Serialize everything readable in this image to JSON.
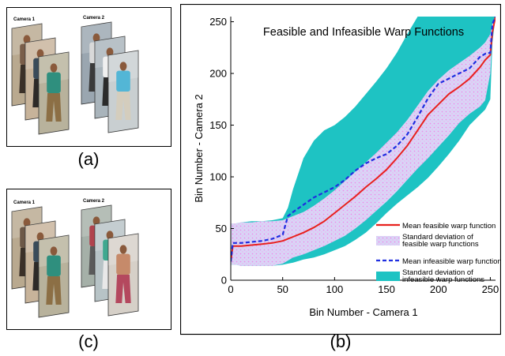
{
  "panels": {
    "a": {
      "caption": "(a)",
      "camera1_label": "Camera 1",
      "camera2_label": "Camera 2",
      "camera1_frames": [
        {
          "tone": "#b9a98f",
          "shirt": "#7a5e4a",
          "pants": "#3b3028"
        },
        {
          "tone": "#c7b39a",
          "shirt": "#3a4b5a",
          "pants": "#2d2a28"
        },
        {
          "tone": "#b8b29c",
          "shirt": "#2f8f7e",
          "pants": "#8c6f45"
        }
      ],
      "camera2_frames": [
        {
          "tone": "#9aa6b0",
          "shirt": "#d9d9d9",
          "pants": "#3a3a3a"
        },
        {
          "tone": "#a9b4bb",
          "shirt": "#f0f0f0",
          "pants": "#2b2b2b"
        },
        {
          "tone": "#c9cfd1",
          "shirt": "#53b6d6",
          "pants": "#d4cdbd"
        }
      ]
    },
    "c": {
      "caption": "(c)",
      "camera1_label": "Camera 1",
      "camera2_label": "Camera 2",
      "camera1_frames": [
        {
          "tone": "#b9a98f",
          "shirt": "#6d5848",
          "pants": "#3b3028"
        },
        {
          "tone": "#c7b39a",
          "shirt": "#3a4b5a",
          "pants": "#2d2a28"
        },
        {
          "tone": "#b8b29c",
          "shirt": "#2f8f7e",
          "pants": "#8c6f45"
        }
      ],
      "camera2_frames": [
        {
          "tone": "#a5b0a8",
          "shirt": "#b0434e",
          "pants": "#5a5a5a"
        },
        {
          "tone": "#b7c3c6",
          "shirt": "#3fa88f",
          "pants": "#e8e8e8"
        },
        {
          "tone": "#d6d0c8",
          "shirt": "#c68a6a",
          "pants": "#b4485e"
        }
      ]
    }
  },
  "chart_data": {
    "type": "line",
    "panel_caption": "(b)",
    "title": "Feasible and Infeasible Warp Functions",
    "xlabel": "Bin Number - Camera 1",
    "ylabel": "Bin Number - Camera 2",
    "xlim": [
      0,
      255
    ],
    "ylim": [
      0,
      255
    ],
    "xticks": [
      0,
      50,
      100,
      150,
      200,
      250
    ],
    "yticks": [
      0,
      50,
      100,
      150,
      200,
      250
    ],
    "grid": false,
    "legend_position": "bottom-right",
    "x": [
      0,
      2,
      5,
      10,
      20,
      30,
      40,
      50,
      55,
      60,
      70,
      80,
      90,
      100,
      110,
      120,
      130,
      140,
      150,
      160,
      170,
      180,
      190,
      200,
      210,
      220,
      230,
      240,
      245,
      250,
      252,
      255
    ],
    "series": [
      {
        "name": "Mean feasible warp function",
        "kind": "line",
        "color": "#e8211e",
        "dash": "solid",
        "values": [
          18,
          33,
          33,
          33,
          34,
          35,
          36,
          38,
          40,
          42,
          46,
          51,
          57,
          65,
          73,
          81,
          90,
          98,
          107,
          118,
          130,
          145,
          160,
          170,
          180,
          187,
          195,
          206,
          213,
          218,
          240,
          255
        ]
      },
      {
        "name": "Standard deviation of feasible warp functions",
        "kind": "band",
        "color": "#d8d0f4",
        "hatch": "#f07ee8",
        "upper": [
          55,
          55,
          55,
          56,
          56,
          57,
          57,
          58,
          60,
          62,
          66,
          72,
          79,
          87,
          96,
          105,
          114,
          123,
          133,
          143,
          155,
          169,
          183,
          194,
          203,
          210,
          217,
          225,
          230,
          238,
          248,
          255
        ],
        "lower": [
          15,
          15,
          15,
          14,
          14,
          14,
          14,
          16,
          19,
          22,
          25,
          29,
          33,
          38,
          43,
          50,
          58,
          67,
          76,
          86,
          97,
          108,
          118,
          129,
          140,
          152,
          161,
          168,
          174,
          200,
          240,
          255
        ]
      },
      {
        "name": "Mean infeasible warp function",
        "kind": "line",
        "color": "#1f2ee0",
        "dash": "dashed",
        "values": [
          18,
          36,
          36,
          36,
          37,
          38,
          40,
          44,
          62,
          66,
          73,
          80,
          85,
          90,
          97,
          106,
          113,
          118,
          122,
          130,
          141,
          158,
          176,
          190,
          195,
          200,
          205,
          216,
          219,
          220,
          248,
          255
        ]
      },
      {
        "name": "Standard deviation of infeasible warp functions",
        "kind": "band",
        "color": "#1ec3c3",
        "upper": [
          55,
          55,
          55,
          56,
          57,
          57,
          58,
          60,
          70,
          88,
          118,
          135,
          145,
          150,
          158,
          168,
          180,
          192,
          205,
          220,
          238,
          255,
          255,
          255,
          255,
          255,
          255,
          255,
          255,
          255,
          255,
          255
        ],
        "lower": [
          15,
          15,
          15,
          14,
          14,
          14,
          14,
          15,
          16,
          17,
          20,
          22,
          25,
          29,
          33,
          39,
          46,
          55,
          65,
          74,
          82,
          90,
          99,
          110,
          122,
          135,
          150,
          160,
          165,
          175,
          230,
          255
        ]
      }
    ]
  }
}
